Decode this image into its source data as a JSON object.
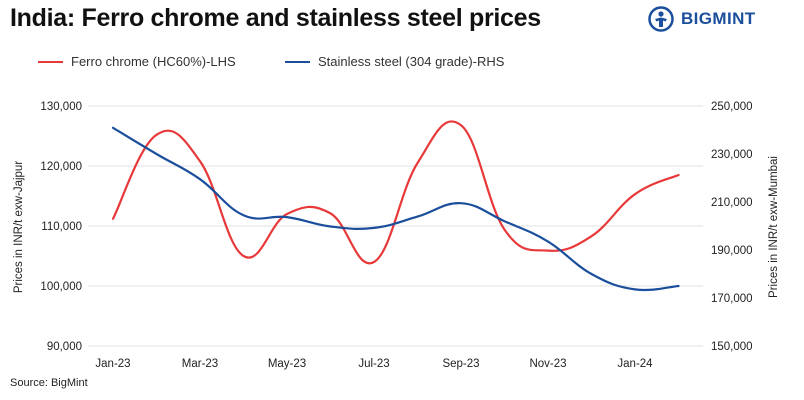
{
  "title": "India: Ferro chrome and stainless steel prices",
  "brand": {
    "name": "BIGMINT",
    "color": "#1b4f9c"
  },
  "source": "Source: BigMint",
  "colors": {
    "left_series": "#e8393a",
    "right_series": "#1b4f9c",
    "grid": "#e2e2e2"
  },
  "chart_data": {
    "type": "line",
    "x": [
      "Jan-23",
      "Feb-23",
      "Mar-23",
      "Apr-23",
      "May-23",
      "Jun-23",
      "Jul-23",
      "Aug-23",
      "Sep-23",
      "Oct-23",
      "Nov-23",
      "Dec-23",
      "Jan-24",
      "Feb-24"
    ],
    "x_tick_labels": [
      "Jan-23",
      "Mar-23",
      "May-23",
      "Jul-23",
      "Sep-23",
      "Nov-23",
      "Jan-24"
    ],
    "series": [
      {
        "name": "Ferro chrome (HC60%)-LHS",
        "axis": "left",
        "values": [
          111200,
          125200,
          120800,
          105000,
          112000,
          112100,
          104000,
          120500,
          126800,
          109400,
          105900,
          108300,
          115300,
          118500
        ]
      },
      {
        "name": "Stainless steel (304 grade)-RHS",
        "axis": "right",
        "values": [
          240900,
          230000,
          219500,
          204500,
          203700,
          199800,
          199200,
          203900,
          209500,
          202000,
          193500,
          180000,
          173600,
          175000
        ]
      }
    ],
    "ylabel_left": "Prices in INR/t exw-Jajpur",
    "ylabel_right": "Prices in INR/t exw-Mumbai",
    "ylim_left": [
      90000,
      130000
    ],
    "ylim_right": [
      150000,
      250000
    ],
    "yticks_left": [
      "90,000",
      "100,000",
      "110,000",
      "120,000",
      "130,000"
    ],
    "yticks_right": [
      "150,000",
      "170,000",
      "190,000",
      "210,000",
      "230,000",
      "250,000"
    ],
    "grid": true,
    "legend_position": "top"
  }
}
